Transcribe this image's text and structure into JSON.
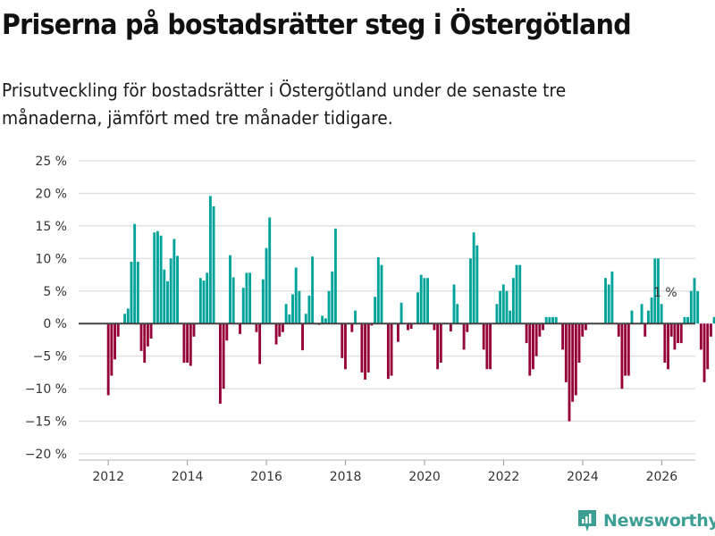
{
  "header": {
    "title": "Priserna på bostadsrätter steg i Östergötland",
    "subtitle": "Prisutveckling för bostadsrätter i Östergötland under de senaste tre månaderna, jämfört med tre månader tidigare."
  },
  "colors": {
    "positive": "#00a39a",
    "negative": "#960038",
    "grid": "#e0e0e0",
    "zero": "#444444"
  },
  "brand": {
    "name": "Newsworthy",
    "icon": "bar-chart-icon"
  },
  "chart_data": {
    "type": "bar",
    "title": "Priserna på bostadsrätter steg i Östergötland",
    "xlabel": "",
    "ylabel": "",
    "ylim": [
      -20,
      25
    ],
    "yticks": [
      -20,
      -15,
      -10,
      -5,
      0,
      5,
      10,
      15,
      20,
      25
    ],
    "ytick_labels": [
      "−20 %",
      "−15 %",
      "−10 %",
      "−5 %",
      "0 %",
      "5 %",
      "10 %",
      "15 %",
      "20 %",
      "25 %"
    ],
    "xlim": [
      2011.25,
      2026.85
    ],
    "xticks": [
      2012,
      2014,
      2016,
      2018,
      2020,
      2022,
      2024,
      2026
    ],
    "xtick_labels": [
      "2012",
      "2014",
      "2016",
      "2018",
      "2020",
      "2022",
      "2024",
      "2026"
    ],
    "grid": true,
    "annotation": {
      "text": "1 %",
      "x": 2026.08,
      "y": 1
    },
    "x_start": 2012.0,
    "x_step": 0.0833,
    "values": [
      -11,
      -8,
      -5.5,
      -2,
      0,
      1.5,
      2.3,
      9.5,
      15.3,
      9.5,
      -4.2,
      -6,
      -3.5,
      -2.3,
      14,
      14.2,
      13.5,
      8.3,
      6.5,
      10,
      13,
      10.4,
      0,
      -6,
      -6,
      -6.5,
      -2,
      0,
      7,
      6.6,
      7.8,
      19.6,
      18,
      0,
      -12.3,
      -10,
      -2.6,
      10.5,
      7.1,
      0,
      -1.6,
      5.5,
      7.8,
      7.8,
      0,
      -1.3,
      -6.2,
      6.8,
      11.6,
      16.3,
      0,
      -3.2,
      -2,
      -1.3,
      3,
      1.4,
      4.5,
      8.6,
      5,
      -4.1,
      1.5,
      4.3,
      10.3,
      0,
      -0.2,
      1.2,
      0.8,
      5,
      8,
      14.6,
      0,
      -5.3,
      -7,
      0,
      -1.3,
      2,
      0,
      -7.5,
      -8.6,
      -7.5,
      -0.3,
      4.1,
      10.2,
      9,
      0,
      -8.5,
      -8,
      0,
      -2.8,
      3.2,
      0,
      -1,
      -0.8,
      0,
      4.8,
      7.5,
      7,
      7,
      0,
      -1,
      -7,
      -6,
      0,
      0,
      -1.2,
      6,
      3,
      0,
      -4,
      -1.3,
      10,
      14,
      12,
      0,
      -4,
      -7,
      -7,
      0,
      3,
      5,
      6,
      5,
      2,
      7,
      9,
      9,
      0,
      -3,
      -8,
      -7,
      -5,
      -2,
      -1,
      1,
      1,
      1,
      1,
      0,
      -4,
      -9,
      -15,
      -12,
      -11,
      -6,
      -2,
      -1,
      0,
      0,
      0,
      0,
      0,
      7,
      6,
      8,
      0,
      -2,
      -10,
      -8,
      -8,
      2,
      0,
      0,
      3,
      -2,
      2,
      4,
      10,
      10,
      3,
      -6,
      -7,
      -2,
      -4,
      -3,
      -3,
      1,
      1,
      5,
      7,
      5,
      -4,
      -9,
      -7,
      -2,
      1
    ]
  }
}
